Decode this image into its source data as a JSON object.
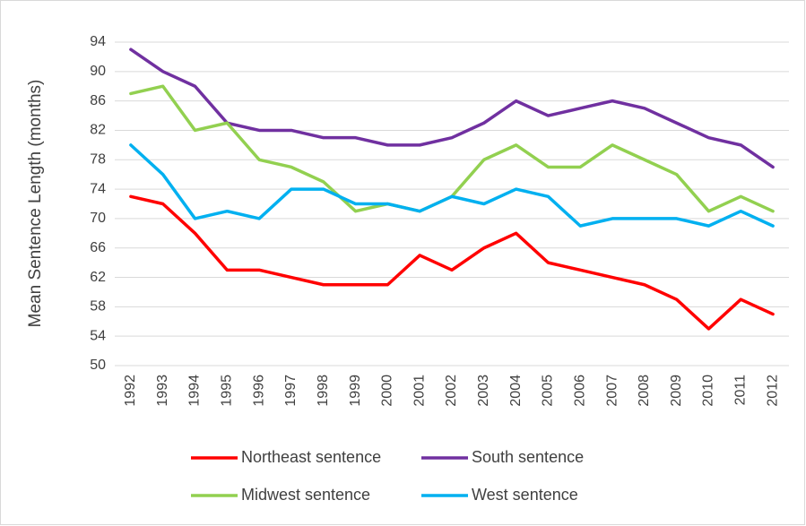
{
  "chart_data": {
    "type": "line",
    "y_label": "Mean Sentence Length (months)",
    "categories": [
      "1992",
      "1993",
      "1994",
      "1995",
      "1996",
      "1997",
      "1998",
      "1999",
      "2000",
      "2001",
      "2002",
      "2003",
      "2004",
      "2005",
      "2006",
      "2007",
      "2008",
      "2009",
      "2010",
      "2011",
      "2012"
    ],
    "series": [
      {
        "name": "Northeast sentence",
        "color": "#ff0000",
        "values": [
          73,
          72,
          68,
          63,
          63,
          62,
          61,
          61,
          61,
          65,
          63,
          66,
          68,
          64,
          63,
          62,
          61,
          59,
          55,
          59,
          57
        ]
      },
      {
        "name": "South sentence",
        "color": "#7030a0",
        "values": [
          93,
          90,
          88,
          83,
          82,
          82,
          81,
          81,
          80,
          80,
          81,
          83,
          86,
          84,
          85,
          86,
          85,
          83,
          81,
          80,
          77
        ]
      },
      {
        "name": "Midwest sentence",
        "color": "#92d050",
        "values": [
          87,
          88,
          82,
          83,
          78,
          77,
          75,
          71,
          72,
          71,
          73,
          78,
          80,
          77,
          77,
          80,
          78,
          76,
          71,
          73,
          71
        ]
      },
      {
        "name": "West sentence",
        "color": "#00b0f0",
        "values": [
          80,
          76,
          70,
          71,
          70,
          74,
          74,
          72,
          72,
          71,
          73,
          72,
          74,
          73,
          69,
          70,
          70,
          70,
          69,
          71,
          69
        ]
      }
    ],
    "ylim": [
      50,
      94
    ],
    "yticks": [
      50,
      54,
      58,
      62,
      66,
      70,
      74,
      78,
      82,
      86,
      90,
      94
    ],
    "grid": true
  }
}
